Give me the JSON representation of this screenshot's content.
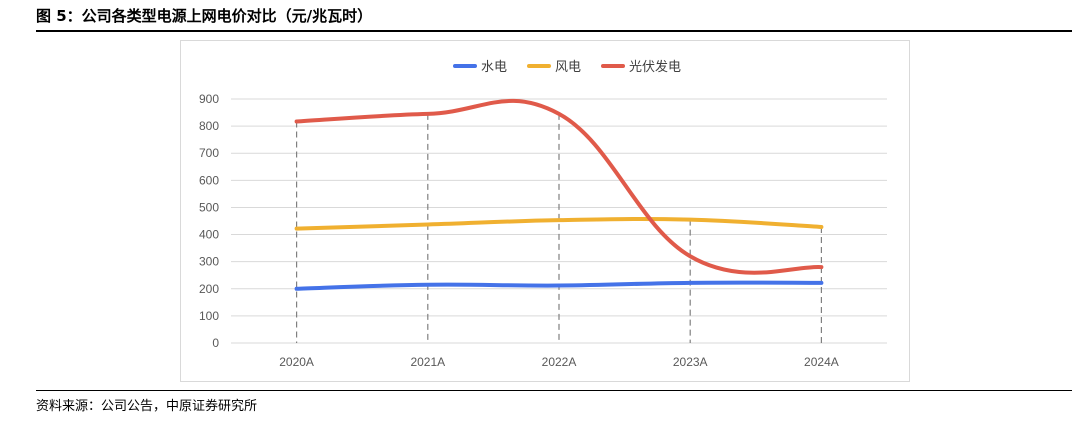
{
  "figure": {
    "title": "图 5：公司各类型电源上网电价对比（元/兆瓦时）",
    "source": "资料来源：公司公告，中原证券研究所"
  },
  "colors": {
    "水电": "#4472e8",
    "风电": "#f0b030",
    "光伏发电": "#e05a4a",
    "grid": "#d9d9d9",
    "dropline": "#808080",
    "axis_text": "#595959"
  },
  "chart_data": {
    "type": "line",
    "title": "",
    "xlabel": "",
    "ylabel": "",
    "categories": [
      "2020A",
      "2021A",
      "2022A",
      "2023A",
      "2024A"
    ],
    "yticks": [
      0,
      100,
      200,
      300,
      400,
      500,
      600,
      700,
      800,
      900
    ],
    "ylim": [
      0,
      900
    ],
    "grid": true,
    "drop_lines": true,
    "smooth": true,
    "legend": "top-center",
    "series": [
      {
        "name": "水电",
        "values": [
          200,
          215,
          212,
          222,
          222
        ]
      },
      {
        "name": "风电",
        "values": [
          422,
          437,
          453,
          455,
          428
        ]
      },
      {
        "name": "光伏发电",
        "values": [
          817,
          845,
          845,
          320,
          280
        ]
      }
    ]
  }
}
